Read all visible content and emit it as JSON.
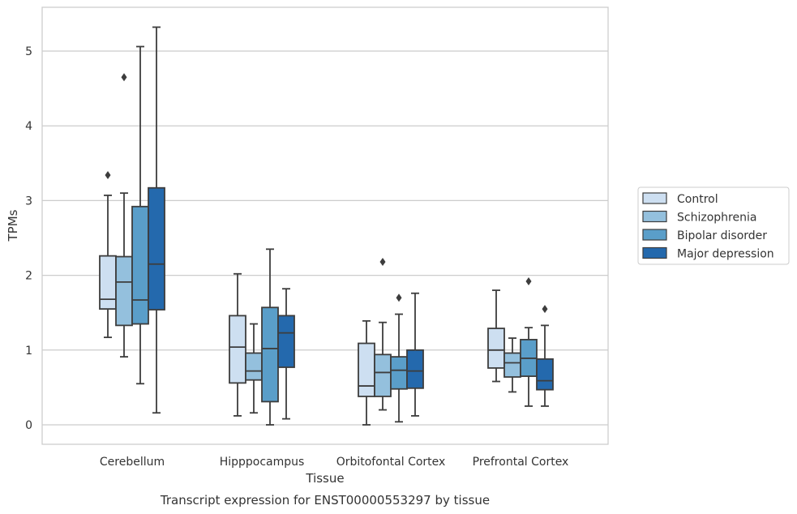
{
  "caption": "Transcript expression for ENST00000553297 by tissue",
  "chart_data": {
    "type": "box",
    "xlabel": "Tissue",
    "ylabel": "TPMs",
    "ylim": [
      -0.25,
      5.6
    ],
    "yticks": [
      0,
      1,
      2,
      3,
      4,
      5
    ],
    "grid": "horizontal",
    "legend_position": "right",
    "categories": [
      "Cerebellum",
      "Hipppocampus",
      "Orbitofontal Cortex",
      "Prefrontal Cortex"
    ],
    "series": [
      {
        "name": "Control",
        "color": "#cddff1",
        "boxes": [
          {
            "q1": 1.55,
            "median": 1.68,
            "q3": 2.26,
            "whislo": 1.17,
            "whishi": 3.07,
            "fliers": [
              3.34
            ]
          },
          {
            "q1": 0.56,
            "median": 1.04,
            "q3": 1.46,
            "whislo": 0.12,
            "whishi": 2.02,
            "fliers": []
          },
          {
            "q1": 0.38,
            "median": 0.52,
            "q3": 1.09,
            "whislo": 0.0,
            "whishi": 1.39,
            "fliers": []
          },
          {
            "q1": 0.76,
            "median": 1.0,
            "q3": 1.29,
            "whislo": 0.58,
            "whishi": 1.8,
            "fliers": []
          }
        ]
      },
      {
        "name": "Schizophrenia",
        "color": "#94c0dd",
        "boxes": [
          {
            "q1": 1.33,
            "median": 1.91,
            "q3": 2.25,
            "whislo": 0.91,
            "whishi": 3.1,
            "fliers": [
              4.65
            ]
          },
          {
            "q1": 0.6,
            "median": 0.72,
            "q3": 0.96,
            "whislo": 0.16,
            "whishi": 1.35,
            "fliers": []
          },
          {
            "q1": 0.38,
            "median": 0.7,
            "q3": 0.94,
            "whislo": 0.2,
            "whishi": 1.37,
            "fliers": [
              2.18
            ]
          },
          {
            "q1": 0.64,
            "median": 0.83,
            "q3": 0.96,
            "whislo": 0.44,
            "whishi": 1.16,
            "fliers": []
          }
        ]
      },
      {
        "name": "Bipolar disorder",
        "color": "#5a9ec9",
        "boxes": [
          {
            "q1": 1.35,
            "median": 1.67,
            "q3": 2.92,
            "whislo": 0.55,
            "whishi": 5.06,
            "fliers": []
          },
          {
            "q1": 0.31,
            "median": 1.02,
            "q3": 1.57,
            "whislo": 0.0,
            "whishi": 2.35,
            "fliers": []
          },
          {
            "q1": 0.48,
            "median": 0.73,
            "q3": 0.91,
            "whislo": 0.04,
            "whishi": 1.48,
            "fliers": [
              1.7
            ]
          },
          {
            "q1": 0.65,
            "median": 0.89,
            "q3": 1.14,
            "whislo": 0.25,
            "whishi": 1.3,
            "fliers": [
              1.92
            ]
          }
        ]
      },
      {
        "name": "Major depression",
        "color": "#2469ad",
        "boxes": [
          {
            "q1": 1.54,
            "median": 2.15,
            "q3": 3.17,
            "whislo": 0.16,
            "whishi": 5.32,
            "fliers": []
          },
          {
            "q1": 0.77,
            "median": 1.23,
            "q3": 1.46,
            "whislo": 0.08,
            "whishi": 1.82,
            "fliers": []
          },
          {
            "q1": 0.49,
            "median": 0.72,
            "q3": 1.0,
            "whislo": 0.12,
            "whishi": 1.76,
            "fliers": []
          },
          {
            "q1": 0.47,
            "median": 0.59,
            "q3": 0.88,
            "whislo": 0.25,
            "whishi": 1.33,
            "fliers": [
              1.55
            ]
          }
        ]
      }
    ]
  }
}
